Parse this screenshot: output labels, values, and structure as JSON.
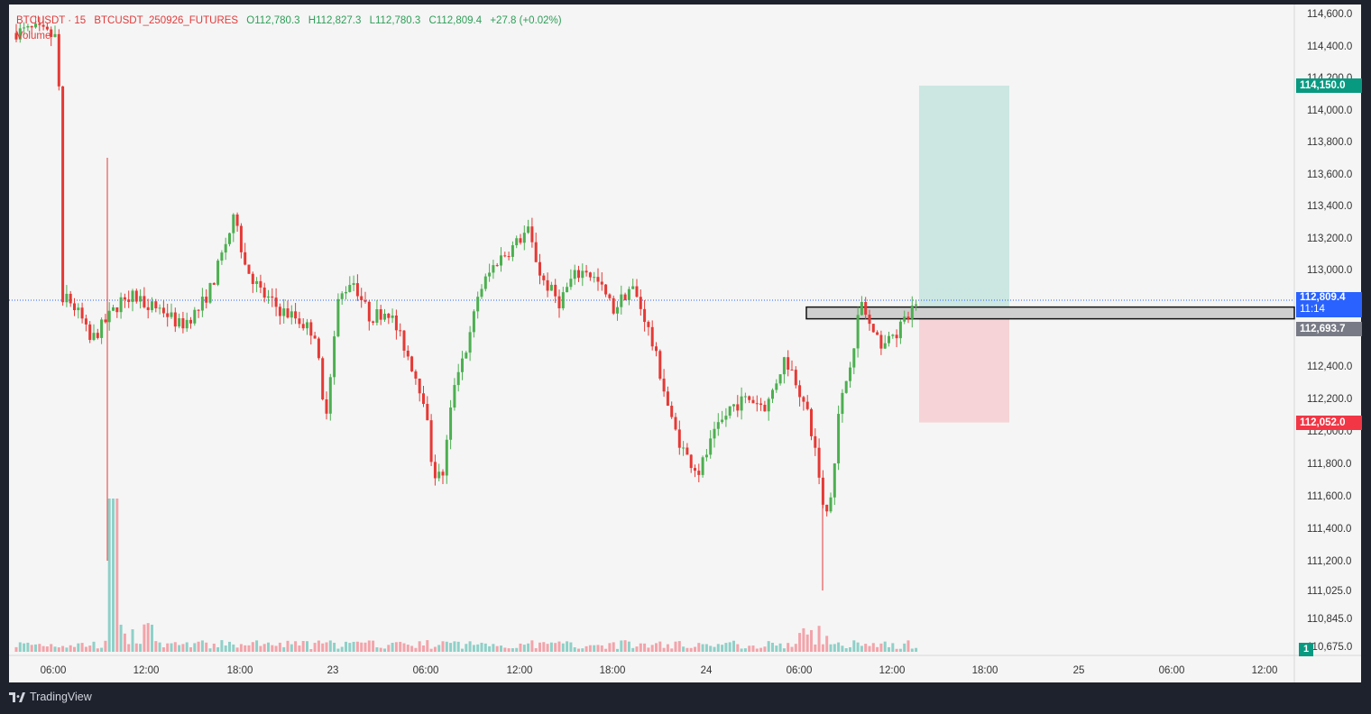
{
  "legend": {
    "symbol": "BTCUSDT · 15",
    "contract": "BTCUSDT_250926_FUTURES",
    "open": "O112,780.3",
    "high": "H112,827.3",
    "low": "L112,780.3",
    "close": "C112,809.4",
    "change": "+27.8 (+0.02%)",
    "volume_label": "Volume"
  },
  "colors": {
    "up": "#26a69a",
    "up_candle": "#4caf50",
    "down": "#e53935",
    "tp_zone": "#cce7e1",
    "sl_zone": "#f6d3d6",
    "last_price_line": "#2962ff",
    "entry_tag": "#787b86"
  },
  "price_tags": {
    "last_price": "112,809.4",
    "countdown": "11:14",
    "take_profit": "114,150.0",
    "stop_loss": "112,052.0",
    "entry": "112,693.7"
  },
  "badge": "1",
  "footer": {
    "brand": "TradingView"
  },
  "chart_data": {
    "type": "candlestick",
    "timeframe": "15",
    "x_tick_labels": [
      "06:00",
      "12:00",
      "18:00",
      "23",
      "06:00",
      "12:00",
      "18:00",
      "24",
      "06:00",
      "12:00",
      "18:00",
      "25",
      "06:00",
      "12:00"
    ],
    "y_tick_labels": [
      "114,600.0",
      "114,400.0",
      "114,200.0",
      "114,000.0",
      "113,800.0",
      "113,600.0",
      "113,400.0",
      "113,200.0",
      "113,000.0",
      "112,400.0",
      "112,200.0",
      "112,000.0",
      "111,800.0",
      "111,600.0",
      "111,400.0",
      "111,200.0",
      "111,025.0",
      "110,845.0",
      "110,675.0"
    ],
    "ylim": [
      110675,
      114600
    ],
    "anchors": [
      {
        "label": "start",
        "price": 114500
      },
      {
        "label": "drop",
        "price": 113600
      },
      {
        "label": "range",
        "price": 112600
      },
      {
        "label": "high_22",
        "price": 113350
      },
      {
        "label": "low_23_am",
        "price": 111700
      },
      {
        "label": "high_23_noon",
        "price": 113250
      },
      {
        "label": "low_24_early",
        "price": 111650
      },
      {
        "label": "low_24_am",
        "price": 111350
      },
      {
        "label": "last",
        "price": 112809.4
      }
    ],
    "position": {
      "entry": 112693.7,
      "take_profit": 114150.0,
      "stop_loss": 112052.0
    },
    "grid": false,
    "legend_placement": "top-left"
  }
}
